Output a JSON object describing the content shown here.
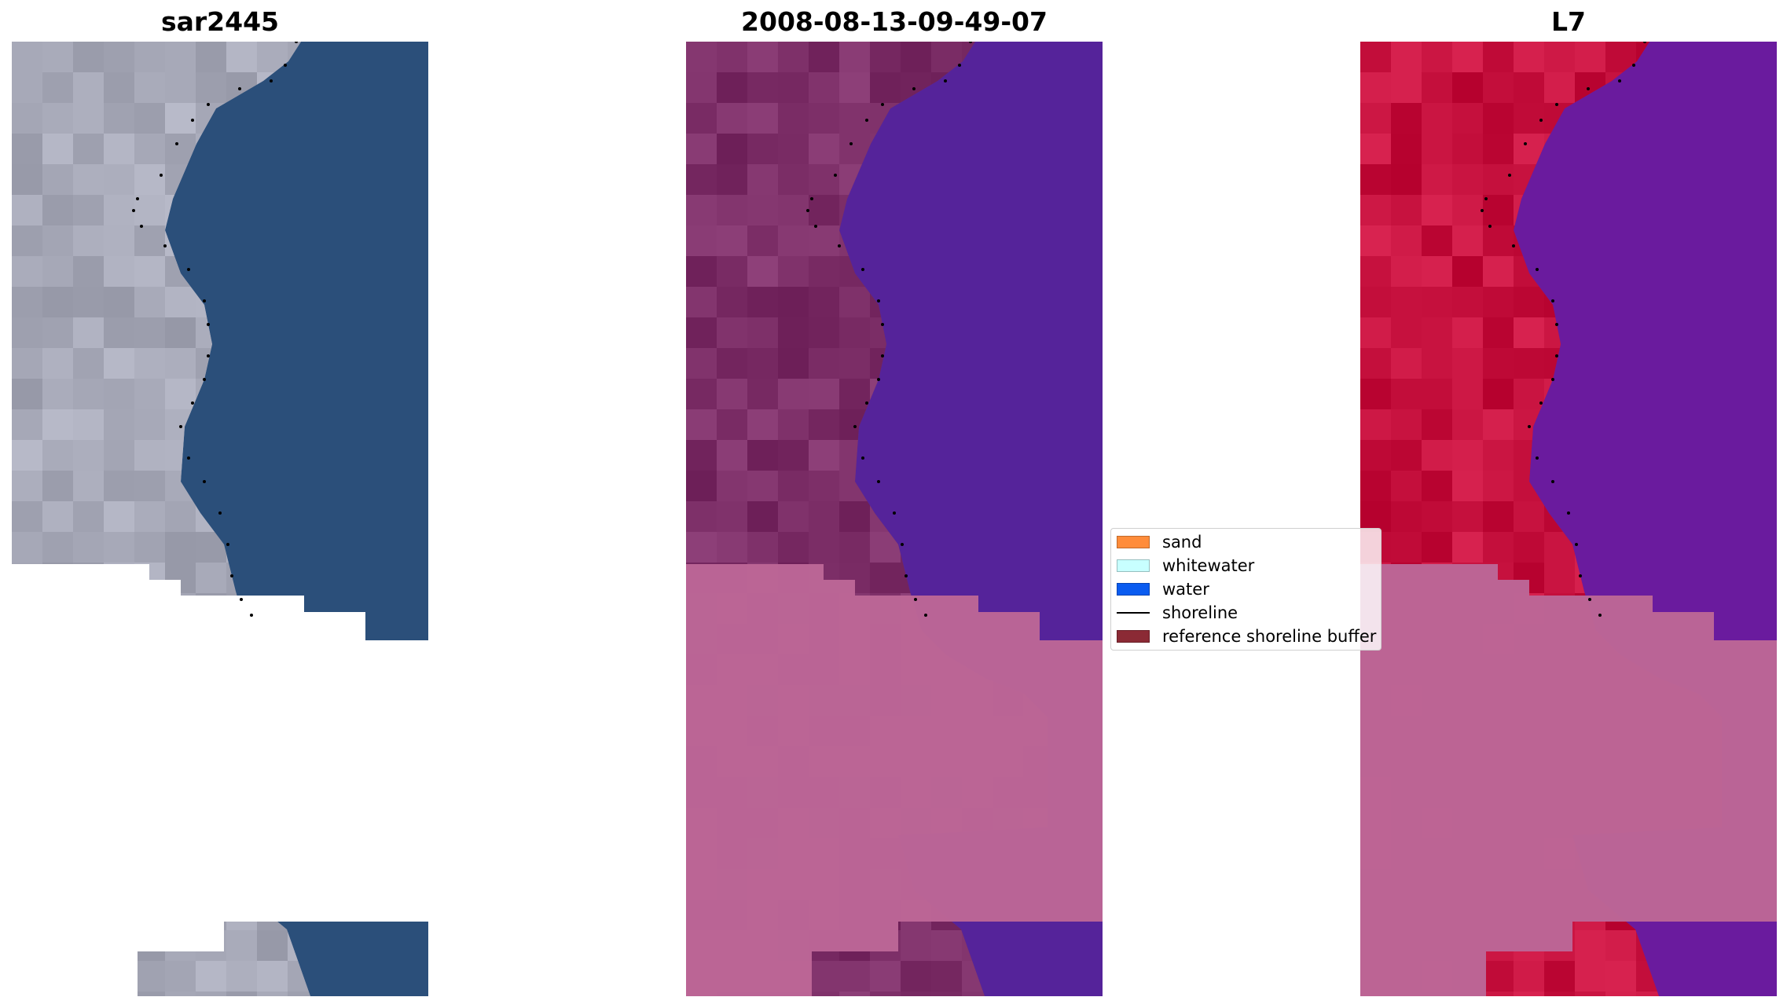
{
  "panels": [
    {
      "title": "sar2445"
    },
    {
      "title": "2008-08-13-09-49-07"
    },
    {
      "title": "L7"
    }
  ],
  "legend": {
    "items": [
      {
        "label": "sand",
        "color": "#ff8c3a",
        "kind": "patch"
      },
      {
        "label": "whitewater",
        "color": "#c8ffff",
        "kind": "patch"
      },
      {
        "label": "water",
        "color": "#0a5cf0",
        "kind": "patch"
      },
      {
        "label": "shoreline",
        "color": "#000000",
        "kind": "line"
      },
      {
        "label": "reference shoreline buffer",
        "color": "#8b2a35",
        "kind": "patch"
      }
    ]
  },
  "colors": {
    "rgb_land": "#a7a9b8",
    "rgb_water": "#2b4f7a",
    "class_land": "#7d2f68",
    "class_water": "#55239a",
    "class_buffer": "#bc6696",
    "false_land": "#c7123f",
    "false_water": "#6a1b9e",
    "shoreline_points": "#000000"
  }
}
